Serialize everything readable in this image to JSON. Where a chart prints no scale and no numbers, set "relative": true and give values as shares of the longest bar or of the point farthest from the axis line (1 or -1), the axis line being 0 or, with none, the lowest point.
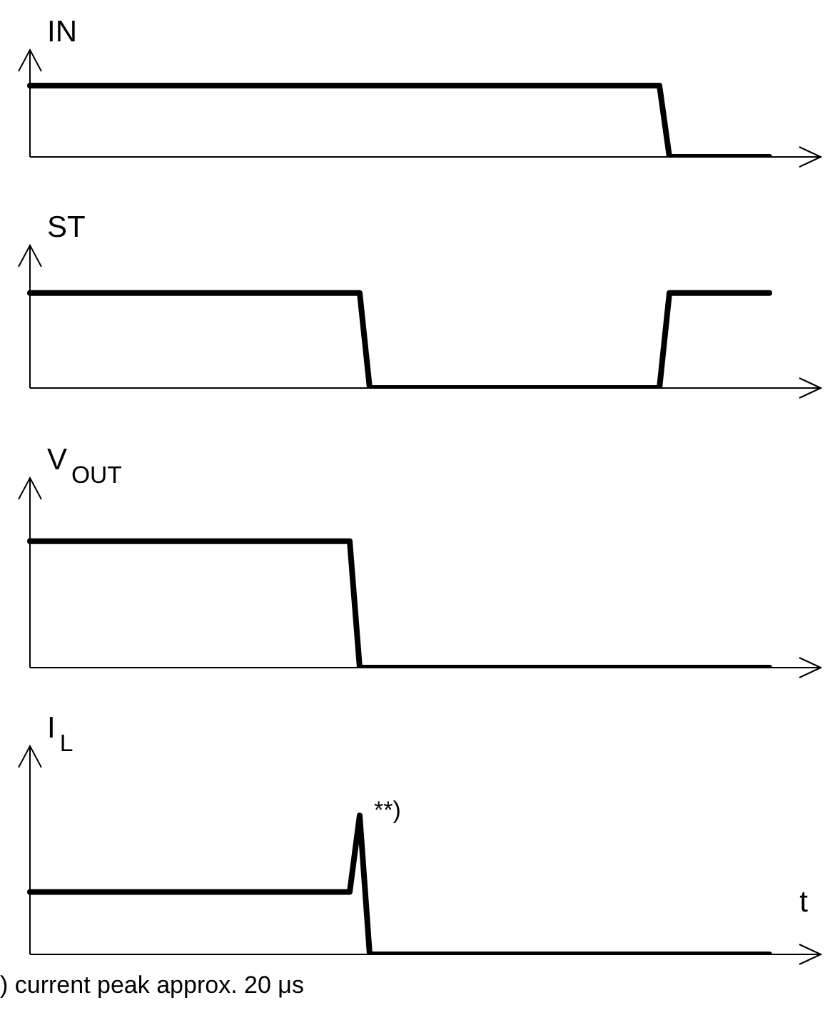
{
  "chart_data": [
    {
      "type": "line",
      "ylabel": "IN",
      "relative": true,
      "tick_labels": false,
      "legend": false,
      "color": "#000000",
      "categories": [
        null,
        null,
        null,
        null,
        null,
        null,
        null,
        null,
        null,
        null,
        null,
        null,
        null,
        null,
        null,
        null,
        null,
        null,
        null,
        null,
        null,
        null,
        null,
        null,
        null,
        null,
        null,
        null,
        null,
        null,
        null,
        null,
        null,
        null,
        null,
        null,
        null,
        null,
        null,
        null,
        null,
        null,
        null,
        null,
        null,
        null,
        null,
        null,
        null,
        null,
        null,
        null,
        null,
        null,
        null,
        null,
        null,
        null,
        null,
        null,
        null,
        null,
        null,
        null,
        null,
        null,
        null,
        null,
        null,
        null,
        null,
        null,
        null,
        null,
        null
      ],
      "values": [
        1,
        1,
        1,
        1,
        1,
        1,
        1,
        1,
        1,
        1,
        1,
        1,
        1,
        1,
        1,
        1,
        1,
        1,
        1,
        1,
        1,
        1,
        1,
        1,
        1,
        1,
        1,
        1,
        1,
        1,
        1,
        1,
        1,
        1,
        1,
        1,
        1,
        1,
        1,
        1,
        1,
        1,
        1,
        1,
        1,
        1,
        1,
        1,
        1,
        1,
        1,
        1,
        1,
        1,
        1,
        1,
        1,
        1,
        1,
        1,
        1,
        1,
        1,
        1,
        0,
        0,
        0,
        0,
        0,
        0,
        0,
        0,
        0,
        0,
        0
      ]
    },
    {
      "type": "line",
      "ylabel": "ST",
      "relative": true,
      "tick_labels": false,
      "legend": false,
      "color": "#000000",
      "categories": [
        null,
        null,
        null,
        null,
        null,
        null,
        null,
        null,
        null,
        null,
        null,
        null,
        null,
        null,
        null,
        null,
        null,
        null,
        null,
        null,
        null,
        null,
        null,
        null,
        null,
        null,
        null,
        null,
        null,
        null,
        null,
        null,
        null,
        null,
        null,
        null,
        null,
        null,
        null,
        null,
        null,
        null,
        null,
        null,
        null,
        null,
        null,
        null,
        null,
        null,
        null,
        null,
        null,
        null,
        null,
        null,
        null,
        null,
        null,
        null,
        null,
        null,
        null,
        null,
        null,
        null,
        null,
        null,
        null,
        null,
        null,
        null,
        null,
        null,
        null
      ],
      "values": [
        1,
        1,
        1,
        1,
        1,
        1,
        1,
        1,
        1,
        1,
        1,
        1,
        1,
        1,
        1,
        1,
        1,
        1,
        1,
        1,
        1,
        1,
        1,
        1,
        1,
        1,
        1,
        1,
        1,
        1,
        1,
        1,
        1,
        1,
        0,
        0,
        0,
        0,
        0,
        0,
        0,
        0,
        0,
        0,
        0,
        0,
        0,
        0,
        0,
        0,
        0,
        0,
        0,
        0,
        0,
        0,
        0,
        0,
        0,
        0,
        0,
        0,
        0,
        0,
        1,
        1,
        1,
        1,
        1,
        1,
        1,
        1,
        1,
        1,
        1
      ]
    },
    {
      "type": "line",
      "ylabel": "V$_{OUT}$",
      "relative": true,
      "tick_labels": false,
      "legend": false,
      "color": "#000000",
      "categories": [
        null,
        null,
        null,
        null,
        null,
        null,
        null,
        null,
        null,
        null,
        null,
        null,
        null,
        null,
        null,
        null,
        null,
        null,
        null,
        null,
        null,
        null,
        null,
        null,
        null,
        null,
        null,
        null,
        null,
        null,
        null,
        null,
        null,
        null,
        null,
        null,
        null,
        null,
        null,
        null,
        null,
        null,
        null,
        null,
        null,
        null,
        null,
        null,
        null,
        null,
        null,
        null,
        null,
        null,
        null,
        null,
        null,
        null,
        null,
        null,
        null,
        null,
        null,
        null,
        null,
        null,
        null,
        null,
        null,
        null,
        null,
        null,
        null,
        null,
        null
      ],
      "values": [
        1,
        1,
        1,
        1,
        1,
        1,
        1,
        1,
        1,
        1,
        1,
        1,
        1,
        1,
        1,
        1,
        1,
        1,
        1,
        1,
        1,
        1,
        1,
        1,
        1,
        1,
        1,
        1,
        1,
        1,
        1,
        1,
        1,
        0,
        0,
        0,
        0,
        0,
        0,
        0,
        0,
        0,
        0,
        0,
        0,
        0,
        0,
        0,
        0,
        0,
        0,
        0,
        0,
        0,
        0,
        0,
        0,
        0,
        0,
        0,
        0,
        0,
        0,
        0,
        0,
        0,
        0,
        0,
        0,
        0,
        0,
        0,
        0,
        0,
        0
      ]
    },
    {
      "type": "line",
      "ylabel": "I$_{L}$",
      "xlabel": "t",
      "relative": true,
      "tick_labels": false,
      "legend": false,
      "color": "#000000",
      "categories": [
        null,
        null,
        null,
        null,
        null,
        null,
        null,
        null,
        null,
        null,
        null,
        null,
        null,
        null,
        null,
        null,
        null,
        null,
        null,
        null,
        null,
        null,
        null,
        null,
        null,
        null,
        null,
        null,
        null,
        null,
        null,
        null,
        null,
        null,
        null,
        null,
        null,
        null,
        null,
        null,
        null,
        null,
        null,
        null,
        null,
        null,
        null,
        null,
        null,
        null,
        null,
        null,
        null,
        null,
        null,
        null,
        null,
        null,
        null,
        null,
        null,
        null,
        null,
        null,
        null,
        null,
        null,
        null,
        null,
        null,
        null,
        null,
        null,
        null,
        null
      ],
      "values": [
        0.45,
        0.45,
        0.45,
        0.45,
        0.45,
        0.45,
        0.45,
        0.45,
        0.45,
        0.45,
        0.45,
        0.45,
        0.45,
        0.45,
        0.45,
        0.45,
        0.45,
        0.45,
        0.45,
        0.45,
        0.45,
        0.45,
        0.45,
        0.45,
        0.45,
        0.45,
        0.45,
        0.45,
        0.45,
        0.45,
        0.45,
        0.45,
        0.45,
        1,
        0,
        0,
        0,
        0,
        0,
        0,
        0,
        0,
        0,
        0,
        0,
        0,
        0,
        0,
        0,
        0,
        0,
        0,
        0,
        0,
        0,
        0,
        0,
        0,
        0,
        0,
        0,
        0,
        0,
        0,
        0,
        0,
        0,
        0,
        0,
        0,
        0,
        0,
        0,
        0,
        0
      ],
      "annotations": [
        "**)",
        ") current peak approx. 20 μs"
      ]
    }
  ]
}
